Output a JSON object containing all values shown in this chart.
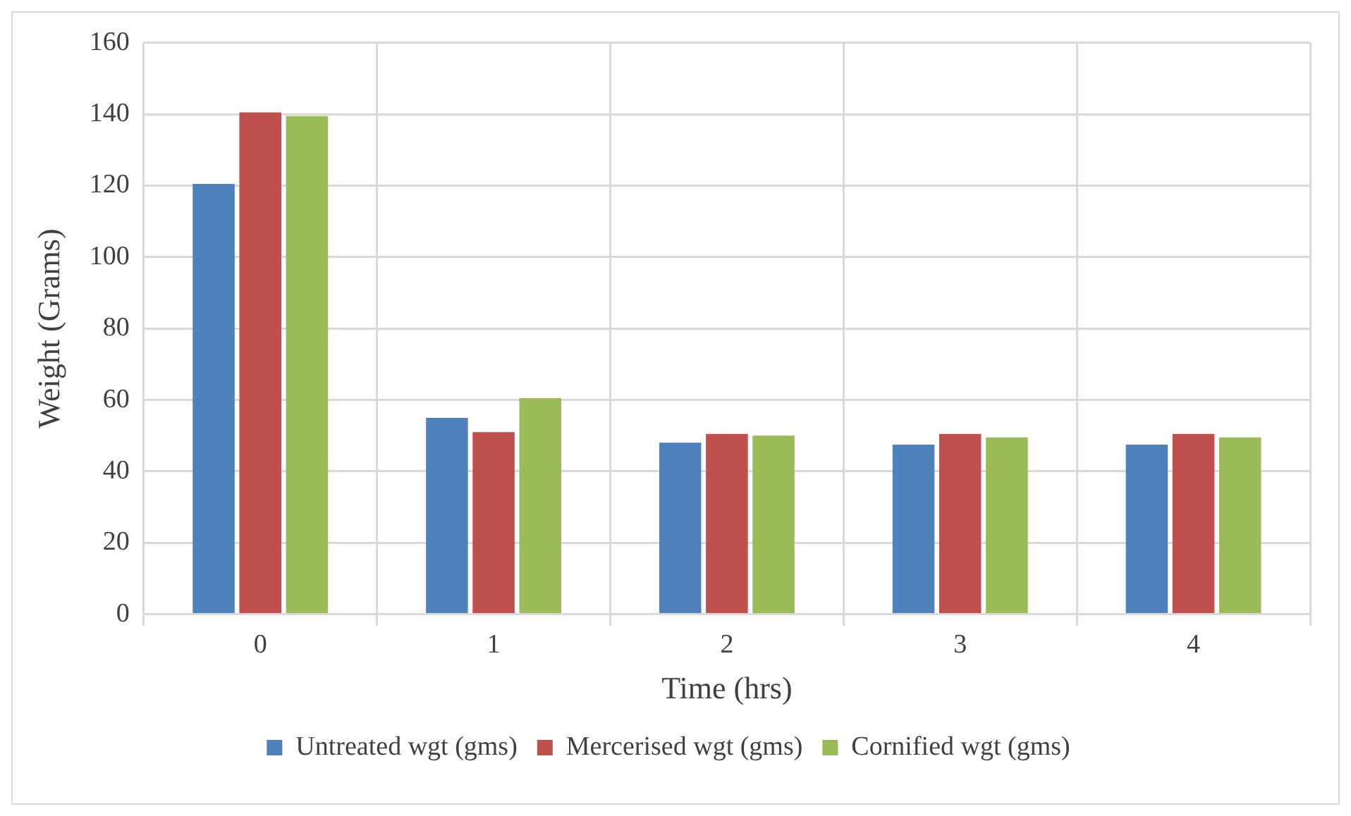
{
  "chart_data": {
    "type": "bar",
    "xlabel": "Time (hrs)",
    "ylabel": "Weight (Grams)",
    "categories": [
      "0",
      "1",
      "2",
      "3",
      "4"
    ],
    "series": [
      {
        "name": "Untreated wgt (gms)",
        "color": "#4f81bd",
        "values": [
          120.5,
          55,
          48,
          47.5,
          47.5
        ]
      },
      {
        "name": "Mercerised wgt (gms)",
        "color": "#c0504d",
        "values": [
          140.5,
          51,
          50.5,
          50.5,
          50.5
        ]
      },
      {
        "name": "Cornified wgt (gms)",
        "color": "#9bbb59",
        "values": [
          139.5,
          60.5,
          50,
          49.5,
          49.5
        ]
      }
    ],
    "ylim": [
      0,
      160
    ],
    "yticks": [
      0,
      20,
      40,
      60,
      80,
      100,
      120,
      140,
      160
    ],
    "grid": true,
    "legend": "bottom"
  }
}
